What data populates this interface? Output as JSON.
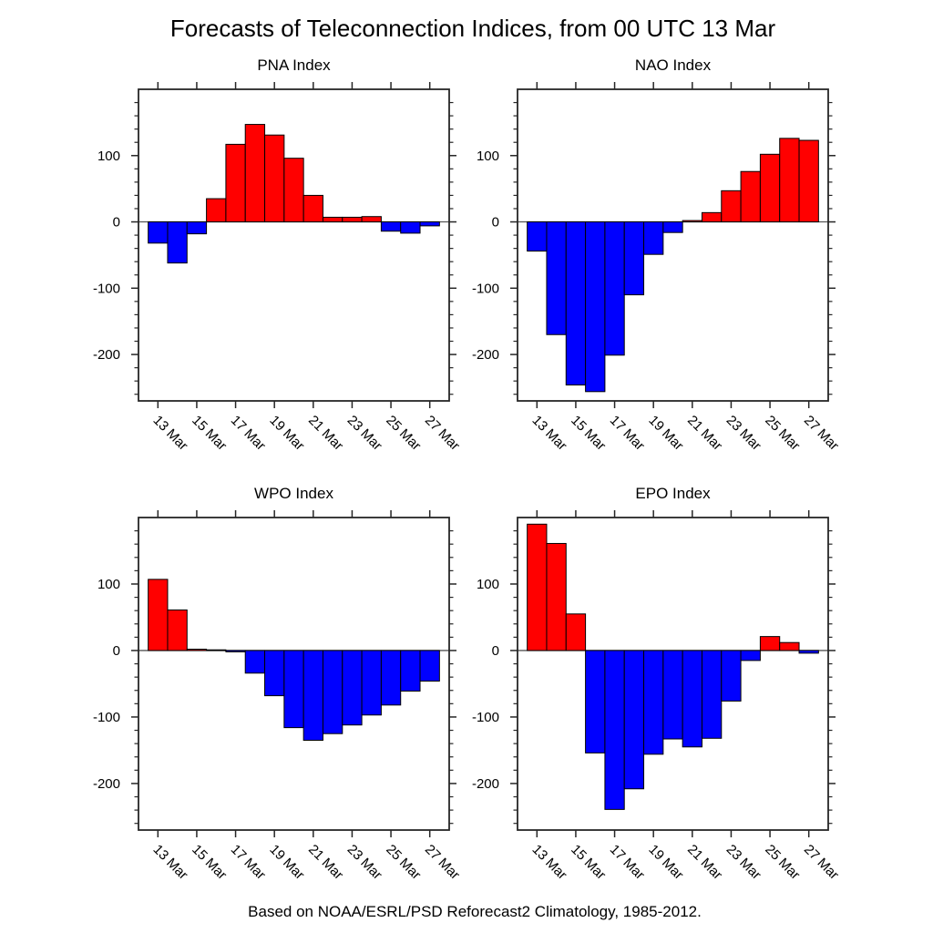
{
  "title": "Forecasts of Teleconnection Indices, from 00 UTC 13 Mar",
  "footer": "Based on NOAA/ESRL/PSD Reforecast2 Climatology, 1985-2012.",
  "colors": {
    "positive_bar": "#ff0000",
    "negative_bar": "#0000ff",
    "bar_outline": "#000000",
    "axis": "#262626",
    "zero_line": "#555555",
    "background": "#ffffff"
  },
  "chart_data": [
    {
      "type": "bar",
      "id": "pna",
      "title": "PNA Index",
      "categories": [
        "13 Mar",
        "14 Mar",
        "15 Mar",
        "16 Mar",
        "17 Mar",
        "18 Mar",
        "19 Mar",
        "20 Mar",
        "21 Mar",
        "22 Mar",
        "23 Mar",
        "24 Mar",
        "25 Mar",
        "26 Mar",
        "27 Mar"
      ],
      "values": [
        -32,
        -62,
        -18,
        35,
        117,
        147,
        131,
        96,
        40,
        7,
        7,
        8,
        -14,
        -17,
        -6
      ],
      "x_major_tick_labels": [
        "13 Mar",
        "15 Mar",
        "17 Mar",
        "19 Mar",
        "21 Mar",
        "23 Mar",
        "25 Mar",
        "27 Mar"
      ],
      "yticks": [
        100,
        0,
        -100,
        -200
      ],
      "ylim": [
        -270,
        200
      ],
      "y_minor_step": 20,
      "grid": "off",
      "legend": "none",
      "color_rule": "red if value >= 0, blue if value < 0"
    },
    {
      "type": "bar",
      "id": "nao",
      "title": "NAO Index",
      "categories": [
        "13 Mar",
        "14 Mar",
        "15 Mar",
        "16 Mar",
        "17 Mar",
        "18 Mar",
        "19 Mar",
        "20 Mar",
        "21 Mar",
        "22 Mar",
        "23 Mar",
        "24 Mar",
        "25 Mar",
        "26 Mar",
        "27 Mar"
      ],
      "values": [
        -44,
        -170,
        -246,
        -256,
        -201,
        -110,
        -49,
        -16,
        2,
        14,
        47,
        76,
        102,
        126,
        123
      ],
      "x_major_tick_labels": [
        "13 Mar",
        "15 Mar",
        "17 Mar",
        "19 Mar",
        "21 Mar",
        "23 Mar",
        "25 Mar",
        "27 Mar"
      ],
      "yticks": [
        100,
        0,
        -100,
        -200
      ],
      "ylim": [
        -270,
        200
      ],
      "y_minor_step": 20,
      "grid": "off",
      "legend": "none",
      "color_rule": "red if value >= 0, blue if value < 0"
    },
    {
      "type": "bar",
      "id": "wpo",
      "title": "WPO Index",
      "categories": [
        "13 Mar",
        "14 Mar",
        "15 Mar",
        "16 Mar",
        "17 Mar",
        "18 Mar",
        "19 Mar",
        "20 Mar",
        "21 Mar",
        "22 Mar",
        "23 Mar",
        "24 Mar",
        "25 Mar",
        "26 Mar",
        "27 Mar"
      ],
      "values": [
        107,
        61,
        2,
        1,
        -2,
        -34,
        -68,
        -116,
        -135,
        -125,
        -112,
        -97,
        -82,
        -61,
        -46
      ],
      "x_major_tick_labels": [
        "13 Mar",
        "15 Mar",
        "17 Mar",
        "19 Mar",
        "21 Mar",
        "23 Mar",
        "25 Mar",
        "27 Mar"
      ],
      "yticks": [
        100,
        0,
        -100,
        -200
      ],
      "ylim": [
        -270,
        200
      ],
      "y_minor_step": 20,
      "grid": "off",
      "legend": "none",
      "color_rule": "red if value >= 0, blue if value < 0"
    },
    {
      "type": "bar",
      "id": "epo",
      "title": "EPO Index",
      "categories": [
        "13 Mar",
        "14 Mar",
        "15 Mar",
        "16 Mar",
        "17 Mar",
        "18 Mar",
        "19 Mar",
        "20 Mar",
        "21 Mar",
        "22 Mar",
        "23 Mar",
        "24 Mar",
        "25 Mar",
        "26 Mar",
        "27 Mar"
      ],
      "values": [
        190,
        161,
        55,
        -154,
        -239,
        -208,
        -156,
        -133,
        -145,
        -132,
        -76,
        -15,
        21,
        12,
        -4
      ],
      "x_major_tick_labels": [
        "13 Mar",
        "15 Mar",
        "17 Mar",
        "19 Mar",
        "21 Mar",
        "23 Mar",
        "25 Mar",
        "27 Mar"
      ],
      "yticks": [
        100,
        0,
        -100,
        -200
      ],
      "ylim": [
        -270,
        200
      ],
      "y_minor_step": 20,
      "grid": "off",
      "legend": "none",
      "color_rule": "red if value >= 0, blue if value < 0"
    }
  ]
}
